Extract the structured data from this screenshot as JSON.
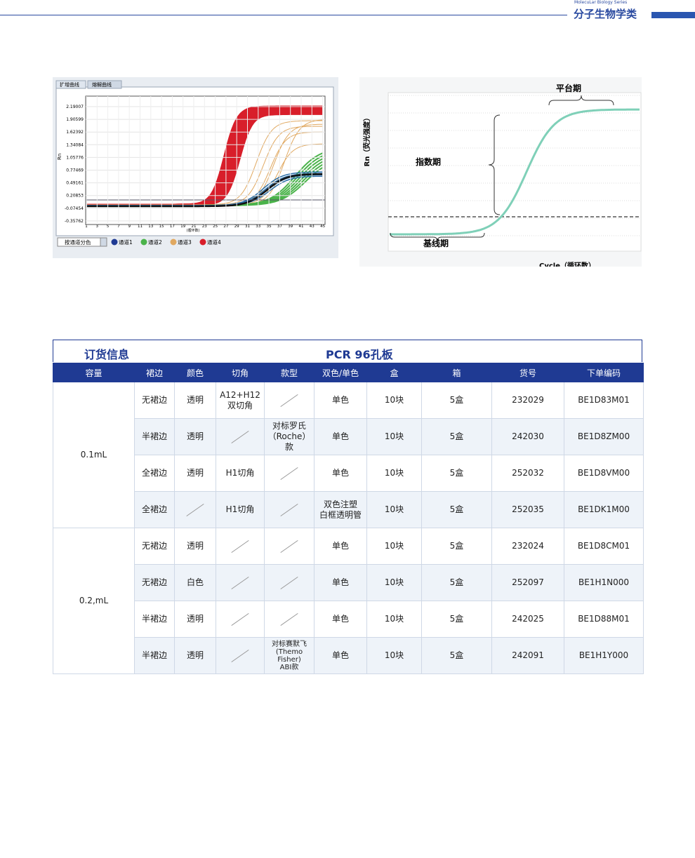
{
  "header": {
    "series": "MolecuLar Biology Series",
    "title": "分子生物学类"
  },
  "figure_left": {
    "tabs": [
      "扩增曲线",
      "熔解曲线"
    ],
    "y_label": "Rn",
    "yticks": [
      "2.19007",
      "1.90599",
      "1.62392",
      "1.34084",
      "1.05776",
      "0.77469",
      "0.49161",
      "0.20853",
      "-0.07454",
      "-0.35762"
    ],
    "xticks": [
      "1",
      "3",
      "5",
      "7",
      "9",
      "11",
      "13",
      "15",
      "17",
      "19",
      "21",
      "23",
      "25",
      "27",
      "29",
      "31",
      "33",
      "35",
      "37",
      "39",
      "41",
      "43",
      "45"
    ],
    "x_label": "(循环数)",
    "select": "按通道分色",
    "legend": [
      "通道1",
      "通道2",
      "通道3",
      "通道4"
    ]
  },
  "figure_right": {
    "y_label": "Rn（荧光强度）",
    "x_label": "Cycle（循环数）",
    "phases": {
      "plateau": "平台期",
      "exponential": "指数期",
      "baseline": "基线期"
    }
  },
  "table": {
    "title": "订货信息",
    "product": "PCR 96孔板",
    "columns": [
      "容量",
      "裙边",
      "颜色",
      "切角",
      "款型",
      "双色/单色",
      "盒",
      "箱",
      "货号",
      "下单编码"
    ],
    "groups": [
      {
        "capacity": "0.1mL",
        "rows": [
          [
            "无裙边",
            "透明",
            "A12+H12\n双切角",
            null,
            "单色",
            "10块",
            "5盒",
            "232029",
            "BE1D83M01"
          ],
          [
            "半裙边",
            "透明",
            null,
            "对标罗氏\n（Roche）款",
            "单色",
            "10块",
            "5盒",
            "242030",
            "BE1D8ZM00"
          ],
          [
            "全裙边",
            "透明",
            "H1切角",
            null,
            "单色",
            "10块",
            "5盒",
            "252032",
            "BE1D8VM00"
          ],
          [
            "全裙边",
            null,
            "H1切角",
            null,
            "双色注塑\n白框透明管",
            "10块",
            "5盒",
            "252035",
            "BE1DK1M00"
          ]
        ]
      },
      {
        "capacity": "0.2,mL",
        "rows": [
          [
            "无裙边",
            "透明",
            null,
            null,
            "单色",
            "10块",
            "5盒",
            "232024",
            "BE1D8CM01"
          ],
          [
            "无裙边",
            "白色",
            null,
            null,
            "单色",
            "10块",
            "5盒",
            "252097",
            "BE1H1N000"
          ],
          [
            "半裙边",
            "透明",
            null,
            null,
            "单色",
            "10块",
            "5盒",
            "242025",
            "BE1D88M01"
          ],
          [
            "半裙边",
            "透明",
            null,
            "对标赛默飞\n(Themo Fisher)\nABI款",
            "单色",
            "10块",
            "5盒",
            "242091",
            "BE1H1Y000"
          ]
        ]
      }
    ]
  }
}
